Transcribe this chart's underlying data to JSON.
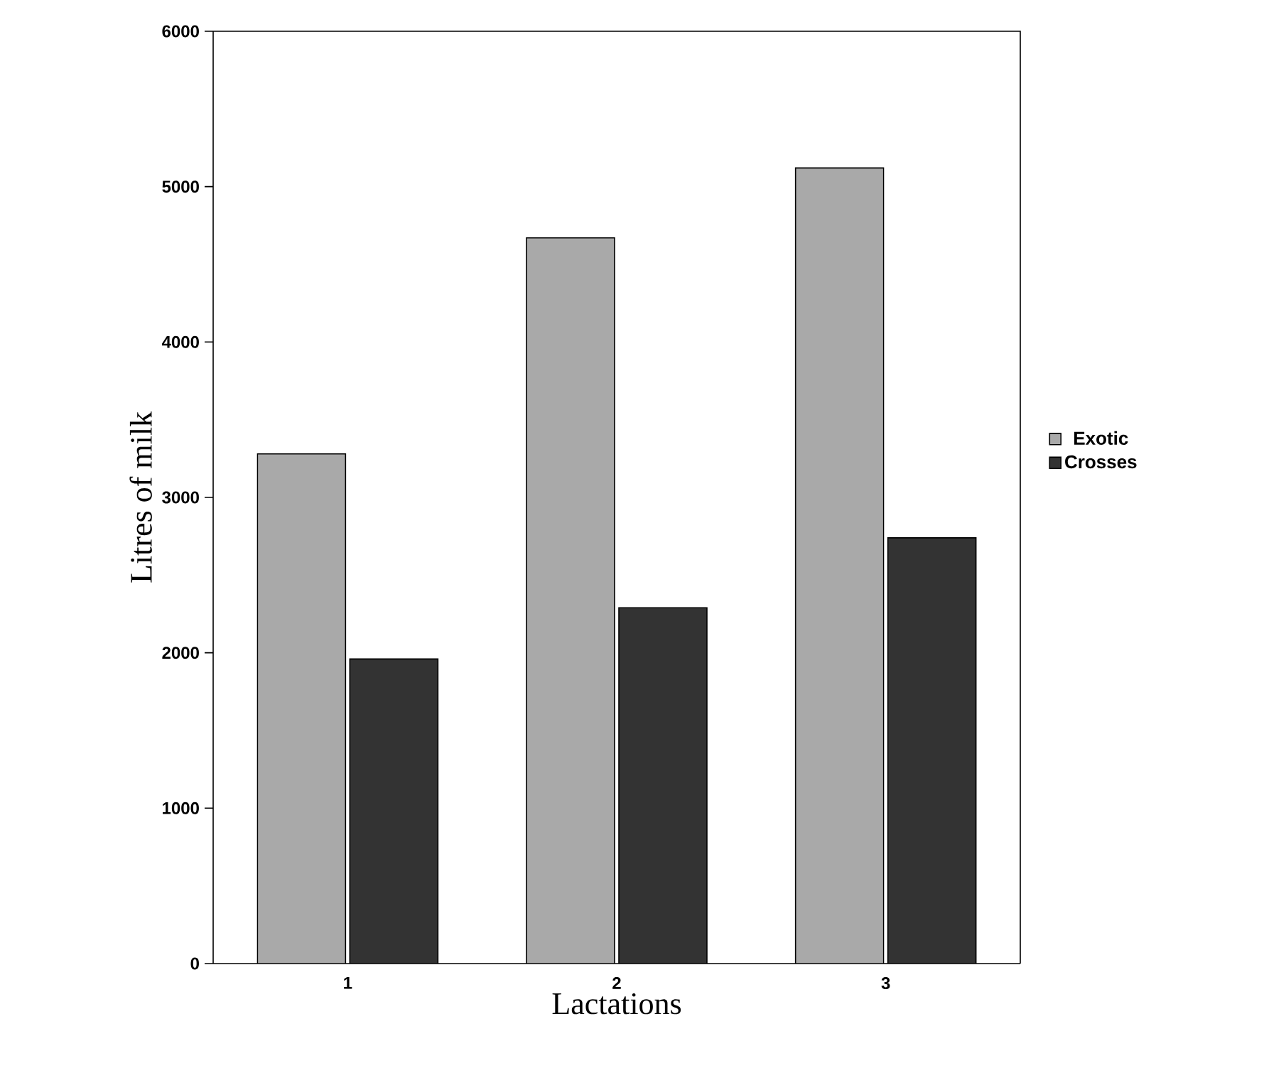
{
  "chart_data": {
    "type": "bar",
    "xlabel": "Lactations",
    "ylabel": "Litres of milk",
    "categories": [
      "1",
      "2",
      "3"
    ],
    "series": [
      {
        "name": "Exotic",
        "color": "#a9a9a9",
        "values": [
          3280,
          4670,
          5120
        ]
      },
      {
        "name": "Crosses",
        "color": "#333333",
        "values": [
          1960,
          2290,
          2740
        ]
      }
    ],
    "ylim": [
      0,
      6000
    ],
    "yticks": [
      0,
      1000,
      2000,
      3000,
      4000,
      5000,
      6000
    ],
    "legend": "right"
  }
}
